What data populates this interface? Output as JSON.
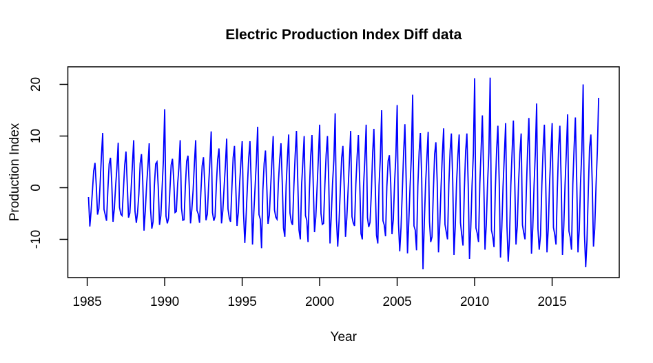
{
  "window": {
    "background_color": "#ffffff"
  },
  "chart_data": {
    "type": "line",
    "title": "Electric Production Index Diff data",
    "xlabel": "Year",
    "ylabel": "Production Index",
    "grid": false,
    "legend": "none",
    "axis_color": "#000000",
    "text_color": "#000000",
    "xlim": [
      1983.75,
      2019.33
    ],
    "ylim": [
      -17.4,
      23.4
    ],
    "x_ticks": [
      1985,
      1990,
      1995,
      2000,
      2005,
      2010,
      2015
    ],
    "y_ticks": [
      -10,
      0,
      10,
      20
    ],
    "series": [
      {
        "color": "#0000ff",
        "x_start": 1985.083333,
        "x_step": 0.083333,
        "values": [
          -1.8,
          -7.5,
          -4.6,
          -0.8,
          3.2,
          4.8,
          0.6,
          -5.2,
          -4.1,
          0.9,
          6.0,
          10.6,
          -4.2,
          -5.3,
          -6.4,
          -0.3,
          4.6,
          5.8,
          1.1,
          -6.6,
          -4.0,
          0.4,
          3.8,
          8.7,
          -3.8,
          -5.1,
          -5.4,
          -0.6,
          4.3,
          7.0,
          0.8,
          -5.8,
          -4.9,
          -0.2,
          4.4,
          9.2,
          -4.6,
          -6.8,
          -4.8,
          -1.2,
          4.7,
          6.5,
          1.4,
          -8.3,
          -4.3,
          0.6,
          4.1,
          8.6,
          -4.0,
          -7.9,
          -6.6,
          0.4,
          4.6,
          5.0,
          0.2,
          -7.2,
          -5.4,
          0.1,
          5.3,
          15.2,
          -5.5,
          -6.9,
          -5.9,
          -0.6,
          4.4,
          5.6,
          1.6,
          -4.8,
          -4.6,
          0.7,
          3.9,
          9.2,
          -3.9,
          -6.3,
          -6.2,
          0.3,
          5.1,
          6.2,
          0.4,
          -6.9,
          -4.2,
          -0.4,
          4.6,
          9.2,
          -4.4,
          -5.1,
          -6.8,
          -0.9,
          4.2,
          5.9,
          0.9,
          -6.3,
          -5.1,
          0.5,
          5.0,
          10.9,
          -4.8,
          -6.4,
          -5.6,
          0.6,
          5.4,
          7.6,
          1.2,
          -6.9,
          -4.4,
          0.2,
          4.3,
          9.5,
          -4.1,
          -5.9,
          -6.6,
          -0.2,
          5.8,
          8.1,
          0.6,
          -7.4,
          -4.7,
          0.8,
          4.8,
          9.0,
          -4.7,
          -10.7,
          -5.8,
          0.1,
          5.6,
          9.0,
          1.0,
          -11.0,
          -4.8,
          0.3,
          5.2,
          11.8,
          -5.2,
          -6.1,
          -11.7,
          -0.5,
          4.7,
          7.2,
          0.7,
          -7.0,
          -5.3,
          0.0,
          4.9,
          10.0,
          -4.3,
          -5.7,
          -6.1,
          0.8,
          5.3,
          8.6,
          1.3,
          -7.8,
          -9.5,
          0.4,
          5.5,
          10.3,
          -4.9,
          -6.6,
          -7.2,
          0.2,
          6.2,
          11.0,
          1.8,
          -8.2,
          -10.0,
          0.6,
          5.0,
          10.0,
          -5.4,
          -6.3,
          -10.5,
          -0.8,
          5.9,
          10.2,
          0.9,
          -8.6,
          -5.6,
          0.2,
          5.8,
          12.2,
          -5.0,
          -7.1,
          -6.9,
          0.5,
          6.4,
          10.0,
          1.5,
          -10.8,
          -5.2,
          0.9,
          5.4,
          14.4,
          -6.2,
          -11.4,
          -6.5,
          -0.3,
          5.7,
          8.1,
          0.3,
          -9.5,
          -5.8,
          -0.6,
          5.1,
          11.0,
          -5.6,
          -6.8,
          -7.4,
          0.7,
          6.1,
          10.2,
          1.1,
          -8.9,
          -10.0,
          0.3,
          5.6,
          12.2,
          -5.8,
          -7.6,
          -6.7,
          -1.0,
          6.6,
          11.4,
          0.8,
          -9.2,
          -10.8,
          0.5,
          5.9,
          15.0,
          -6.4,
          -7.2,
          -9.4,
          0.2,
          5.2,
          6.3,
          1.0,
          -9.0,
          -6.1,
          0.8,
          6.2,
          16.0,
          -6.9,
          -12.3,
          -7.7,
          -0.5,
          6.8,
          12.3,
          1.3,
          -12.7,
          -6.4,
          0.2,
          6.0,
          18.0,
          -7.4,
          -8.2,
          -12.1,
          0.3,
          6.9,
          10.6,
          1.9,
          -15.8,
          -6.7,
          0.6,
          5.7,
          10.8,
          -6.6,
          -10.5,
          -9.5,
          -0.7,
          6.5,
          8.8,
          1.2,
          -12.5,
          -6.9,
          0.1,
          6.4,
          11.5,
          -7.1,
          -8.5,
          -10.0,
          0.6,
          7.2,
          10.5,
          1.6,
          -13.0,
          -7.2,
          0.9,
          6.1,
          10.3,
          -6.8,
          -9.1,
          -11.2,
          -0.4,
          7.0,
          10.5,
          0.7,
          -13.8,
          -7.5,
          0.4,
          6.6,
          21.2,
          -7.8,
          -8.8,
          -10.5,
          0.8,
          7.5,
          14.0,
          2.0,
          -12.0,
          -7.0,
          0.7,
          6.8,
          21.3,
          -8.2,
          -9.4,
          -11.5,
          -0.2,
          7.3,
          12.0,
          1.4,
          -13.5,
          -7.7,
          0.2,
          6.3,
          12.5,
          -7.5,
          -14.3,
          -9.8,
          0.5,
          7.1,
          13.0,
          1.8,
          -11.0,
          -7.3,
          0.8,
          6.5,
          10.5,
          -7.2,
          -8.7,
          -10.0,
          -0.6,
          7.4,
          13.5,
          1.1,
          -12.8,
          -7.6,
          0.3,
          6.9,
          16.3,
          -8.0,
          -12.0,
          -9.2,
          0.4,
          7.6,
          12.2,
          1.5,
          -12.5,
          -7.8,
          0.6,
          6.7,
          12.5,
          -7.7,
          -9.0,
          -11.0,
          -0.3,
          7.8,
          12.0,
          1.2,
          -13.0,
          -7.4,
          0.5,
          7.0,
          14.2,
          -8.4,
          -9.6,
          -12.0,
          0.7,
          7.9,
          13.6,
          1.7,
          -12.5,
          -8.0,
          0.9,
          7.2,
          20.0,
          -9.0,
          -15.4,
          -10.2,
          -0.5,
          7.7,
          10.3,
          1.3,
          -11.4,
          -7.9,
          0.4,
          7.1,
          17.4
        ]
      }
    ]
  }
}
